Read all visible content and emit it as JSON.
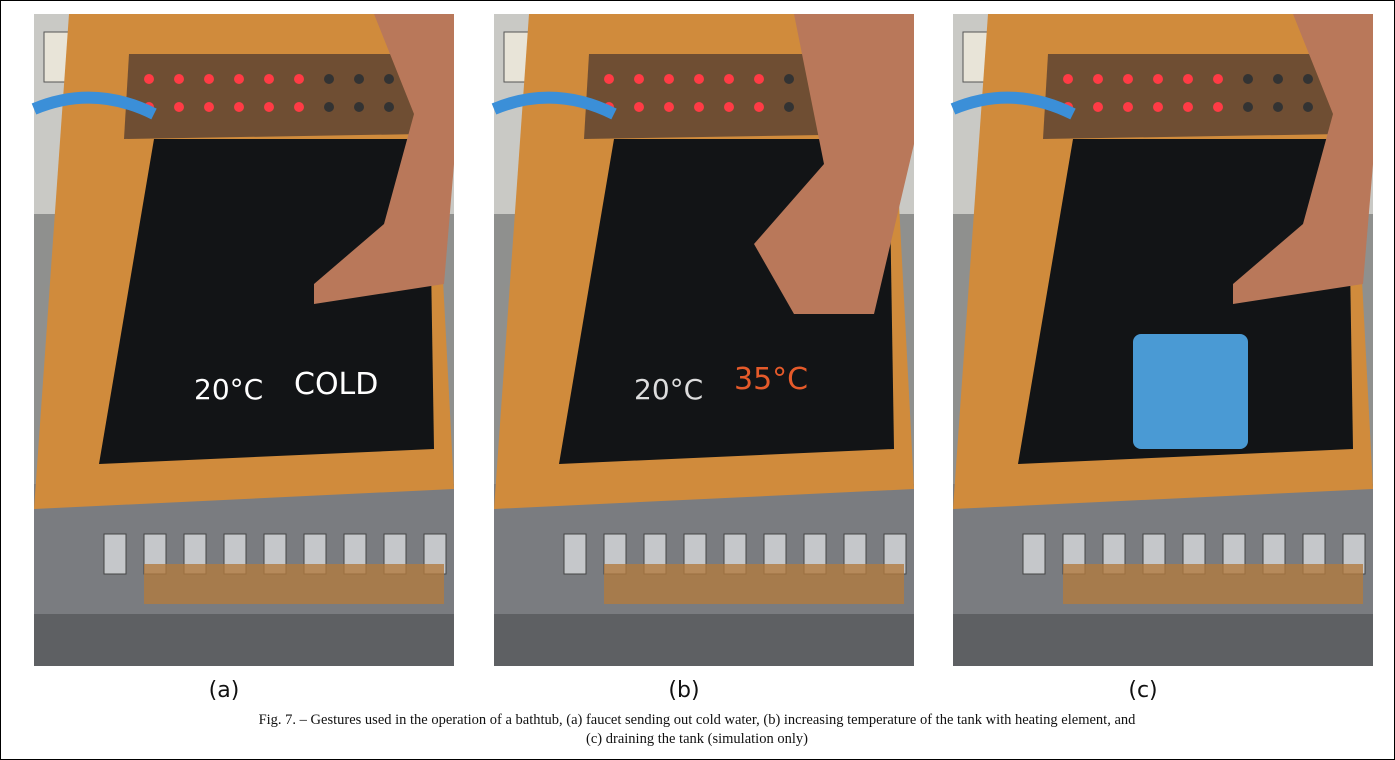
{
  "figure": {
    "panels": [
      {
        "label": "(a)",
        "screen_texts": [
          "20°C",
          "COLD"
        ]
      },
      {
        "label": "(b)",
        "screen_texts": [
          "20°C",
          "35°C"
        ]
      },
      {
        "label": "(c)"
      }
    ],
    "caption": [
      "Fig. 7. – Gestures used in the operation of a bathtub, (a) faucet sending out cold water, (b) increasing temperature of the tank with heating element, and",
      "(c) draining the tank (simulation only)"
    ]
  }
}
